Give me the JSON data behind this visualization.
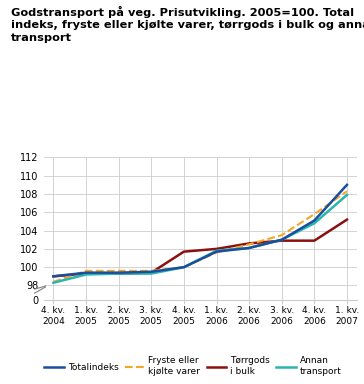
{
  "title": "Godstransport på veg. Prisutvikling. 2005=100. Total\nindeks, fryste eller kjølte varer, tørrgods i bulk og annan\ntransport",
  "x_labels": [
    "4. kv.\n2004",
    "1. kv.\n2005",
    "2. kv.\n2005",
    "3. kv.\n2005",
    "4. kv.\n2005",
    "1. kv.\n2006",
    "2. kv.\n2006",
    "3. kv.\n2006",
    "4. kv.\n2006",
    "1. kv.\n2007"
  ],
  "totalindeks": [
    99.0,
    99.4,
    99.4,
    99.5,
    100.0,
    101.7,
    102.1,
    103.0,
    105.1,
    109.0
  ],
  "fryste": [
    98.4,
    99.6,
    99.6,
    99.6,
    100.0,
    101.6,
    102.5,
    103.5,
    105.8,
    108.3
  ],
  "torrgods": [
    99.0,
    99.3,
    99.3,
    99.4,
    101.7,
    102.0,
    102.6,
    102.9,
    102.9,
    105.2
  ],
  "annan": [
    98.3,
    99.2,
    99.3,
    99.3,
    100.0,
    101.8,
    102.1,
    103.0,
    104.8,
    107.9
  ],
  "color_total": "#1a4fa0",
  "color_fryste": "#f5a623",
  "color_torrgods": "#8b1010",
  "color_annan": "#2ab5af",
  "yticks_main": [
    98,
    100,
    102,
    104,
    106,
    108,
    110,
    112
  ],
  "yticks_zero": [
    0
  ],
  "ylim_main": [
    97.5,
    112
  ],
  "ylim_zero": [
    0,
    1
  ],
  "legend_labels": [
    "Totalindeks",
    "Fryste eller\nkjølte varer",
    "Tørrgods\ni bulk",
    "Annan\ntransport"
  ],
  "background_color": "#ffffff",
  "grid_color": "#cccccc"
}
